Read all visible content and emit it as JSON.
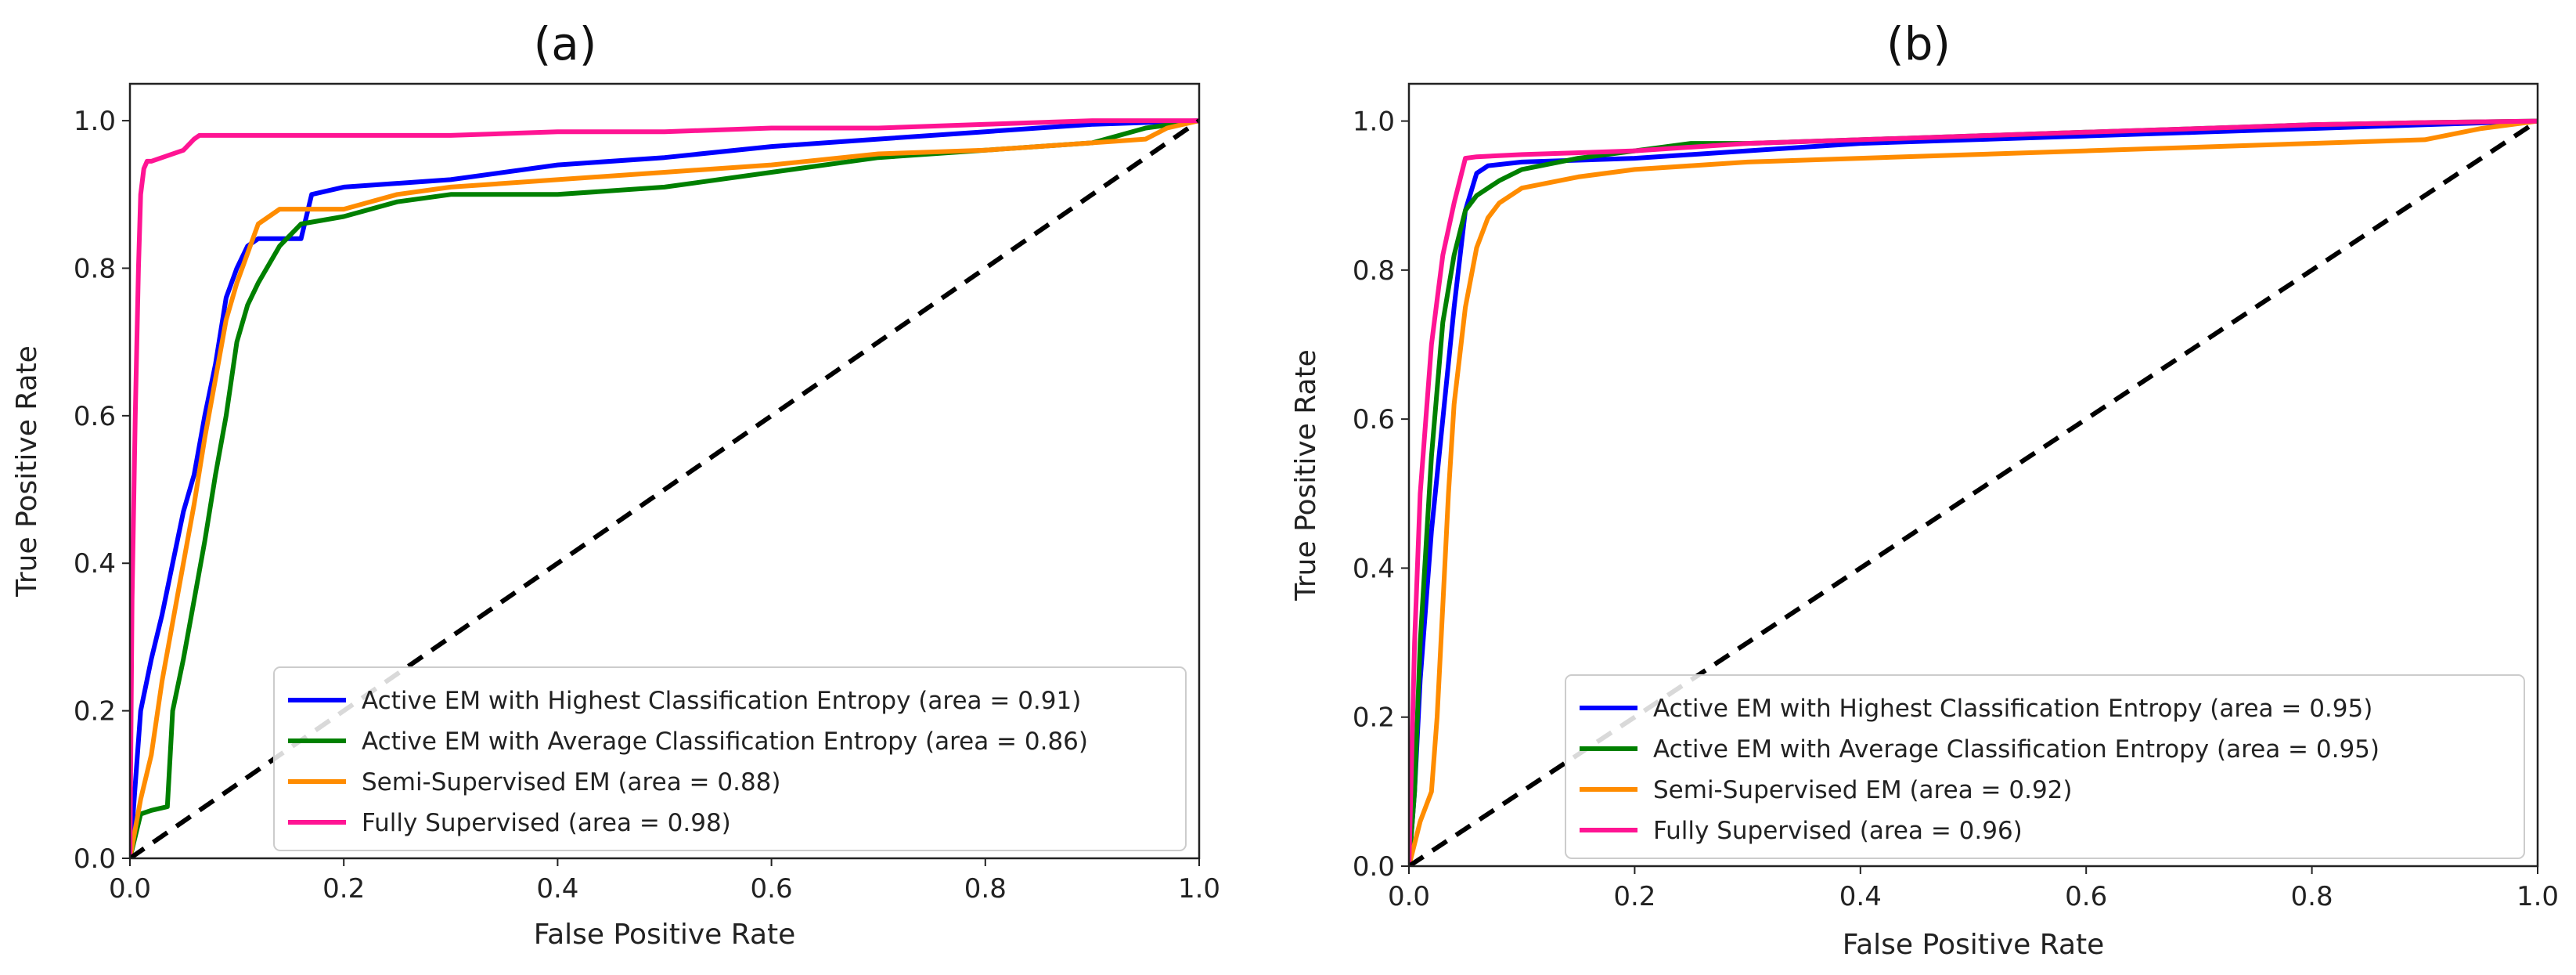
{
  "chart_data": [
    {
      "type": "line",
      "title": "(a)",
      "xlabel": "False Positive Rate",
      "ylabel": "True Positive Rate",
      "xlim": [
        0,
        1
      ],
      "ylim": [
        0,
        1.05
      ],
      "xticks": [
        "0.0",
        "0.2",
        "0.4",
        "0.6",
        "0.8",
        "1.0"
      ],
      "yticks": [
        "0.0",
        "0.2",
        "0.4",
        "0.6",
        "0.8",
        "1.0"
      ],
      "legend_position": "lower-right",
      "diagonal": {
        "x": [
          0,
          1
        ],
        "y": [
          0,
          1
        ],
        "color": "#000000",
        "style": "dashed"
      },
      "series": [
        {
          "name": "Active EM with Highest Classification Entropy (area = 0.91)",
          "color": "#0000ff",
          "x": [
            0,
            0.005,
            0.01,
            0.02,
            0.03,
            0.04,
            0.05,
            0.06,
            0.07,
            0.08,
            0.09,
            0.1,
            0.11,
            0.12,
            0.13,
            0.16,
            0.17,
            0.2,
            0.3,
            0.4,
            0.5,
            0.6,
            0.7,
            0.8,
            0.9,
            1.0
          ],
          "y": [
            0,
            0.1,
            0.2,
            0.27,
            0.33,
            0.4,
            0.47,
            0.52,
            0.6,
            0.67,
            0.76,
            0.8,
            0.83,
            0.84,
            0.84,
            0.84,
            0.9,
            0.91,
            0.92,
            0.94,
            0.95,
            0.965,
            0.975,
            0.985,
            0.995,
            1.0
          ]
        },
        {
          "name": "Active EM with Average Classification Entropy (area = 0.86)",
          "color": "#008000",
          "x": [
            0,
            0.01,
            0.02,
            0.035,
            0.04,
            0.05,
            0.06,
            0.07,
            0.08,
            0.09,
            0.1,
            0.11,
            0.12,
            0.14,
            0.16,
            0.2,
            0.25,
            0.3,
            0.4,
            0.5,
            0.6,
            0.7,
            0.8,
            0.9,
            0.95,
            1.0
          ],
          "y": [
            0,
            0.06,
            0.065,
            0.07,
            0.2,
            0.27,
            0.35,
            0.43,
            0.52,
            0.6,
            0.7,
            0.75,
            0.78,
            0.83,
            0.86,
            0.87,
            0.89,
            0.9,
            0.9,
            0.91,
            0.93,
            0.95,
            0.96,
            0.97,
            0.99,
            1.0
          ]
        },
        {
          "name": "Semi-Supervised EM (area = 0.88)",
          "color": "#ff8c00",
          "x": [
            0,
            0.01,
            0.02,
            0.03,
            0.04,
            0.05,
            0.06,
            0.07,
            0.08,
            0.09,
            0.1,
            0.12,
            0.14,
            0.16,
            0.2,
            0.25,
            0.3,
            0.4,
            0.5,
            0.6,
            0.7,
            0.8,
            0.9,
            0.95,
            0.97,
            1.0
          ],
          "y": [
            0,
            0.08,
            0.14,
            0.24,
            0.32,
            0.4,
            0.48,
            0.57,
            0.65,
            0.73,
            0.78,
            0.86,
            0.88,
            0.88,
            0.88,
            0.9,
            0.91,
            0.92,
            0.93,
            0.94,
            0.955,
            0.96,
            0.97,
            0.975,
            0.99,
            1.0
          ]
        },
        {
          "name": "Fully Supervised (area = 0.98)",
          "color": "#ff1493",
          "x": [
            0,
            0.002,
            0.005,
            0.008,
            0.01,
            0.013,
            0.016,
            0.02,
            0.05,
            0.06,
            0.065,
            0.1,
            0.2,
            0.3,
            0.4,
            0.5,
            0.6,
            0.7,
            0.8,
            0.9,
            1.0
          ],
          "y": [
            0,
            0.35,
            0.6,
            0.8,
            0.9,
            0.935,
            0.945,
            0.945,
            0.96,
            0.975,
            0.98,
            0.98,
            0.98,
            0.98,
            0.985,
            0.985,
            0.99,
            0.99,
            0.995,
            1.0,
            1.0
          ]
        }
      ]
    },
    {
      "type": "line",
      "title": "(b)",
      "xlabel": "False Positive Rate",
      "ylabel": "True Positive Rate",
      "xlim": [
        0,
        1
      ],
      "ylim": [
        0,
        1.05
      ],
      "xticks": [
        "0.0",
        "0.2",
        "0.4",
        "0.6",
        "0.8",
        "1.0"
      ],
      "yticks": [
        "0.0",
        "0.2",
        "0.4",
        "0.6",
        "0.8",
        "1.0"
      ],
      "legend_position": "lower-right",
      "diagonal": {
        "x": [
          0,
          1
        ],
        "y": [
          0,
          1
        ],
        "color": "#000000",
        "style": "dashed"
      },
      "series": [
        {
          "name": "Active EM with Highest Classification Entropy (area = 0.95)",
          "color": "#0000ff",
          "x": [
            0,
            0.005,
            0.01,
            0.015,
            0.02,
            0.03,
            0.04,
            0.05,
            0.06,
            0.07,
            0.1,
            0.2,
            0.3,
            0.4,
            0.5,
            0.6,
            0.7,
            0.8,
            0.9,
            1.0
          ],
          "y": [
            0,
            0.1,
            0.25,
            0.35,
            0.45,
            0.6,
            0.75,
            0.88,
            0.93,
            0.94,
            0.945,
            0.95,
            0.96,
            0.97,
            0.975,
            0.98,
            0.985,
            0.99,
            0.995,
            1.0
          ]
        },
        {
          "name": "Active EM with Average Classification Entropy (area = 0.95)",
          "color": "#008000",
          "x": [
            0,
            0.005,
            0.01,
            0.02,
            0.03,
            0.04,
            0.05,
            0.06,
            0.08,
            0.1,
            0.15,
            0.2,
            0.25,
            0.3,
            0.4,
            0.5,
            0.6,
            0.7,
            0.8,
            0.9,
            1.0
          ],
          "y": [
            0,
            0.1,
            0.3,
            0.55,
            0.73,
            0.82,
            0.88,
            0.9,
            0.92,
            0.935,
            0.95,
            0.96,
            0.97,
            0.97,
            0.975,
            0.98,
            0.985,
            0.99,
            0.995,
            0.998,
            1.0
          ]
        },
        {
          "name": "Semi-Supervised EM (area = 0.92)",
          "color": "#ff8c00",
          "x": [
            0,
            0.01,
            0.02,
            0.025,
            0.03,
            0.035,
            0.04,
            0.05,
            0.06,
            0.07,
            0.08,
            0.1,
            0.15,
            0.2,
            0.3,
            0.4,
            0.5,
            0.6,
            0.7,
            0.8,
            0.9,
            0.95,
            1.0
          ],
          "y": [
            0,
            0.06,
            0.1,
            0.2,
            0.35,
            0.5,
            0.62,
            0.75,
            0.83,
            0.87,
            0.89,
            0.91,
            0.925,
            0.935,
            0.945,
            0.95,
            0.955,
            0.96,
            0.965,
            0.97,
            0.975,
            0.99,
            1.0
          ]
        },
        {
          "name": "Fully Supervised (area = 0.96)",
          "color": "#ff1493",
          "x": [
            0,
            0.005,
            0.01,
            0.015,
            0.02,
            0.025,
            0.03,
            0.04,
            0.05,
            0.06,
            0.1,
            0.2,
            0.3,
            0.4,
            0.5,
            0.6,
            0.7,
            0.8,
            0.9,
            1.0
          ],
          "y": [
            0,
            0.3,
            0.5,
            0.6,
            0.7,
            0.76,
            0.82,
            0.89,
            0.95,
            0.952,
            0.955,
            0.96,
            0.97,
            0.975,
            0.98,
            0.985,
            0.99,
            0.995,
            0.998,
            1.0
          ]
        }
      ]
    }
  ]
}
